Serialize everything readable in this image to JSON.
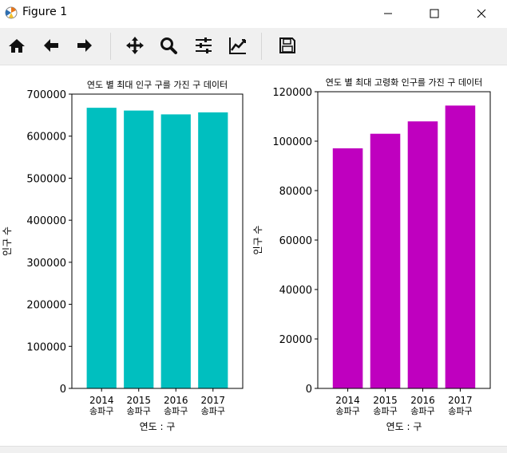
{
  "window": {
    "title": "Figure 1"
  },
  "toolbar": {
    "buttons": [
      {
        "name": "home-icon"
      },
      {
        "name": "back-arrow-icon"
      },
      {
        "name": "forward-arrow-icon"
      },
      {
        "name": "pan-icon"
      },
      {
        "name": "zoom-icon"
      },
      {
        "name": "configure-subplots-icon"
      },
      {
        "name": "edit-axis-icon"
      },
      {
        "name": "save-icon"
      }
    ]
  },
  "chart_data": [
    {
      "type": "bar",
      "title": "연도 별 최대 인구 구를 가진 구 데이터",
      "xlabel": "연도 : 구",
      "ylabel": "인구 수",
      "categories": [
        "2014\n송파구",
        "2015\n송파구",
        "2016\n송파구",
        "2017\n송파구"
      ],
      "values": [
        667500,
        660900,
        651800,
        656600
      ],
      "ylim": [
        0,
        700000
      ],
      "yticks": [
        0,
        100000,
        200000,
        300000,
        400000,
        500000,
        600000,
        700000
      ],
      "color": "#00bfbf",
      "grid": false
    },
    {
      "type": "bar",
      "title": "연도 별 최대 고령화 인구를 가진 구 데이터",
      "xlabel": "연도 : 구",
      "ylabel": "인구 수",
      "categories": [
        "2014\n송파구",
        "2015\n송파구",
        "2016\n송파구",
        "2017\n송파구"
      ],
      "values": [
        97100,
        103000,
        108000,
        114400
      ],
      "ylim": [
        0,
        120000
      ],
      "yticks": [
        0,
        20000,
        40000,
        60000,
        80000,
        100000,
        120000
      ],
      "color": "#bf00bf",
      "grid": false
    }
  ]
}
